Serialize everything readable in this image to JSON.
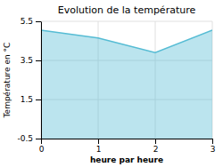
{
  "chart_data": {
    "type": "area",
    "title": "Evolution de la température",
    "xlabel": "heure par heure",
    "ylabel": "Température en °C",
    "x": [
      0,
      1,
      2,
      3
    ],
    "values": [
      5.05,
      4.65,
      3.9,
      5.05
    ],
    "color": "#56bcd4",
    "xlim": [
      0,
      3
    ],
    "ylim": [
      -0.5,
      5.5
    ],
    "xticks": [
      0,
      1,
      2,
      3
    ],
    "yticks": [
      -0.5,
      1.5,
      3.5,
      5.5
    ],
    "grid": true
  }
}
